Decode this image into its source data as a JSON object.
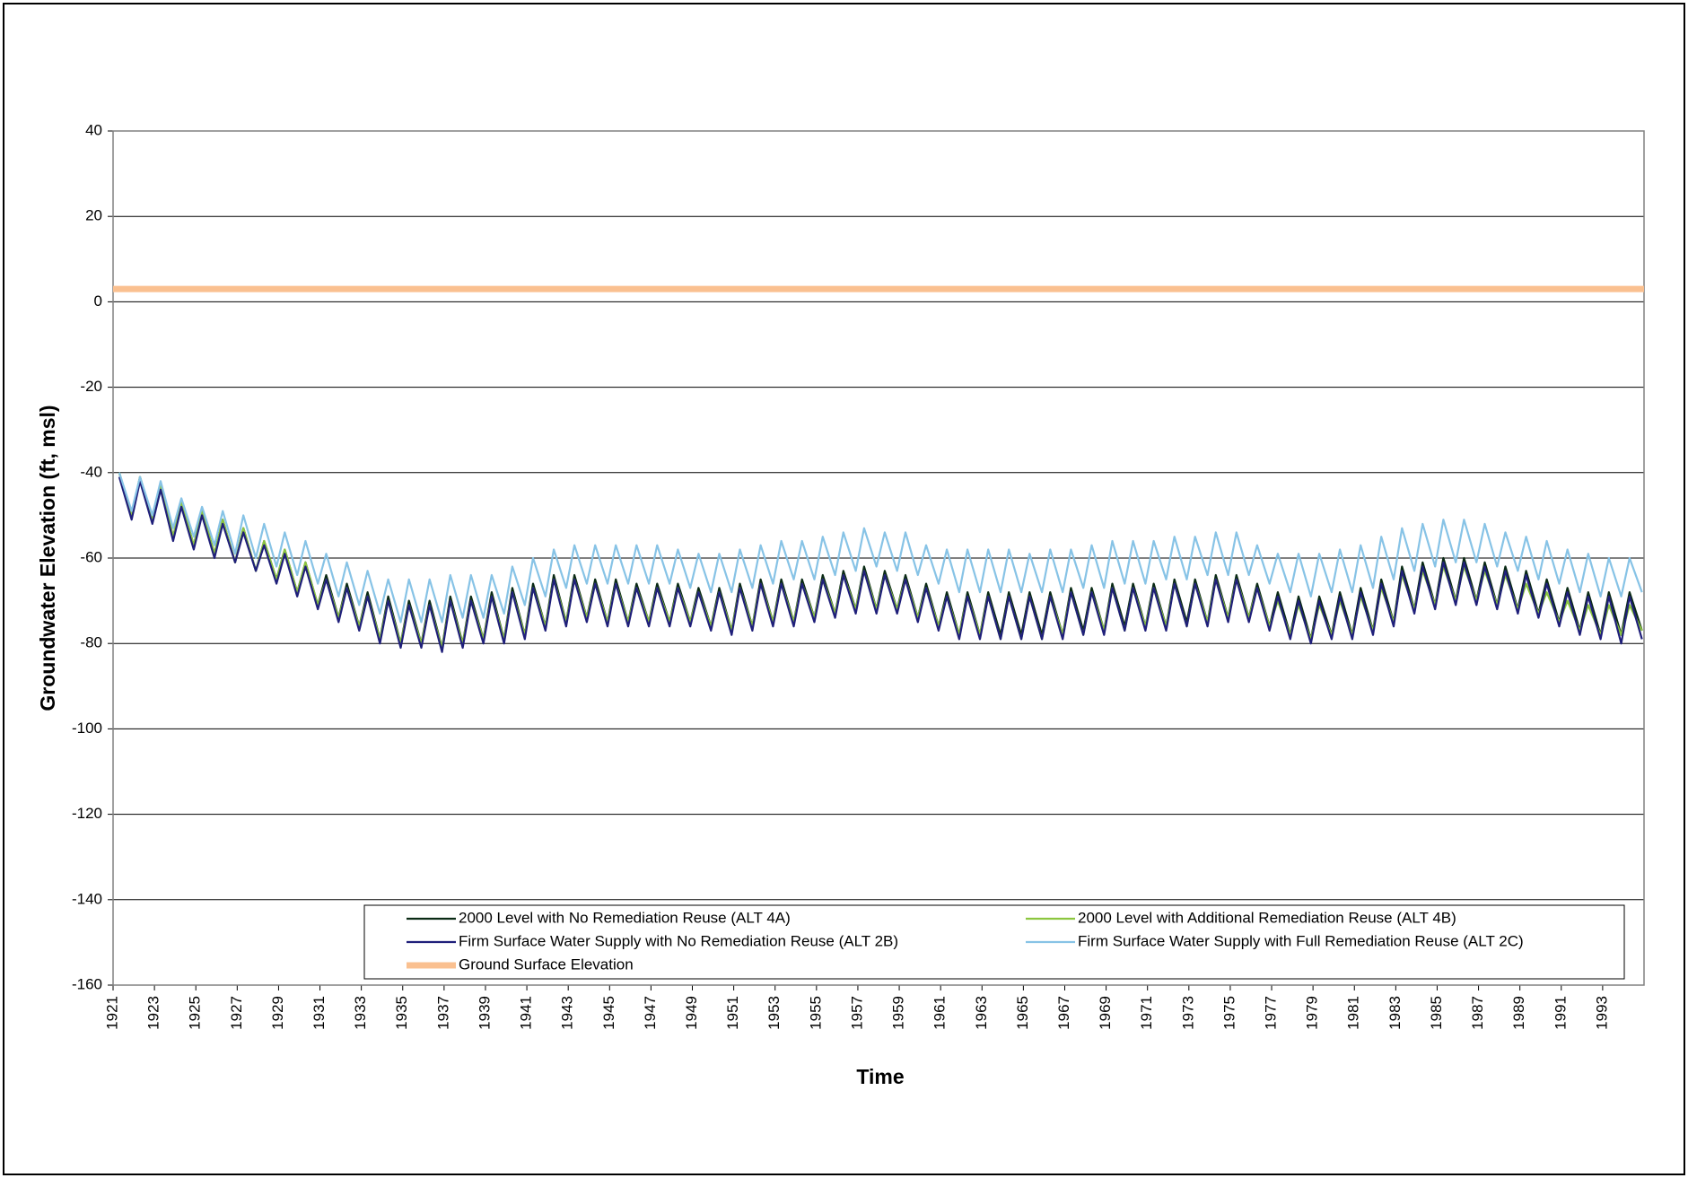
{
  "chart_data": {
    "type": "line",
    "x_label": "Time",
    "y_label": "Groundwater Elevation (ft, msl)",
    "xlim": [
      1921,
      1995
    ],
    "xticks": [
      1921,
      1923,
      1925,
      1927,
      1929,
      1931,
      1933,
      1935,
      1937,
      1939,
      1941,
      1943,
      1945,
      1947,
      1949,
      1951,
      1953,
      1955,
      1957,
      1959,
      1961,
      1963,
      1965,
      1967,
      1969,
      1971,
      1973,
      1975,
      1977,
      1979,
      1981,
      1983,
      1985,
      1987,
      1989,
      1991,
      1993
    ],
    "ylim": [
      -160,
      40
    ],
    "yticks": [
      -160,
      -140,
      -120,
      -100,
      -80,
      -60,
      -40,
      -20,
      0,
      20,
      40
    ],
    "grid": true,
    "legend": "lower center",
    "x": [
      1921.3,
      1921.9,
      1922.3,
      1922.9,
      1923.3,
      1923.9,
      1924.3,
      1924.9,
      1925.3,
      1925.9,
      1926.3,
      1926.9,
      1927.3,
      1927.9,
      1928.3,
      1928.9,
      1929.3,
      1929.9,
      1930.3,
      1930.9,
      1931.3,
      1931.9,
      1932.3,
      1932.9,
      1933.3,
      1933.9,
      1934.3,
      1934.9,
      1935.3,
      1935.9,
      1936.3,
      1936.9,
      1937.3,
      1937.9,
      1938.3,
      1938.9,
      1939.3,
      1939.9,
      1940.3,
      1940.9,
      1941.3,
      1941.9,
      1942.3,
      1942.9,
      1943.3,
      1943.9,
      1944.3,
      1944.9,
      1945.3,
      1945.9,
      1946.3,
      1946.9,
      1947.3,
      1947.9,
      1948.3,
      1948.9,
      1949.3,
      1949.9,
      1950.3,
      1950.9,
      1951.3,
      1951.9,
      1952.3,
      1952.9,
      1953.3,
      1953.9,
      1954.3,
      1954.9,
      1955.3,
      1955.9,
      1956.3,
      1956.9,
      1957.3,
      1957.9,
      1958.3,
      1958.9,
      1959.3,
      1959.9,
      1960.3,
      1960.9,
      1961.3,
      1961.9,
      1962.3,
      1962.9,
      1963.3,
      1963.9,
      1964.3,
      1964.9,
      1965.3,
      1965.9,
      1966.3,
      1966.9,
      1967.3,
      1967.9,
      1968.3,
      1968.9,
      1969.3,
      1969.9,
      1970.3,
      1970.9,
      1971.3,
      1971.9,
      1972.3,
      1972.9,
      1973.3,
      1973.9,
      1974.3,
      1974.9,
      1975.3,
      1975.9,
      1976.3,
      1976.9,
      1977.3,
      1977.9,
      1978.3,
      1978.9,
      1979.3,
      1979.9,
      1980.3,
      1980.9,
      1981.3,
      1981.9,
      1982.3,
      1982.9,
      1983.3,
      1983.9,
      1984.3,
      1984.9,
      1985.3,
      1985.9,
      1986.3,
      1986.9,
      1987.3,
      1987.9,
      1988.3,
      1988.9,
      1989.3,
      1989.9,
      1990.3,
      1990.9,
      1991.3,
      1991.9,
      1992.3,
      1992.9,
      1993.3,
      1993.9,
      1994.3,
      1994.9
    ],
    "series": [
      {
        "name": "2000 Level with No Remediation Reuse (ALT 4A)",
        "color": "#0a2a14",
        "values": [
          -40,
          -50,
          -41,
          -51,
          -43,
          -55,
          -47,
          -57,
          -49,
          -59,
          -51,
          -61,
          -53,
          -63,
          -56,
          -65,
          -58,
          -68,
          -61,
          -71,
          -64,
          -74,
          -66,
          -76,
          -68,
          -79,
          -69,
          -80,
          -70,
          -80,
          -70,
          -81,
          -69,
          -80,
          -69,
          -79,
          -68,
          -79,
          -67,
          -78,
          -66,
          -76,
          -64,
          -75,
          -64,
          -74,
          -65,
          -75,
          -65,
          -75,
          -66,
          -75,
          -66,
          -75,
          -66,
          -75,
          -67,
          -76,
          -67,
          -77,
          -66,
          -76,
          -65,
          -75,
          -65,
          -75,
          -65,
          -74,
          -64,
          -73,
          -63,
          -72,
          -62,
          -72,
          -63,
          -72,
          -64,
          -74,
          -66,
          -76,
          -68,
          -78,
          -68,
          -78,
          -68,
          -78,
          -68,
          -78,
          -68,
          -78,
          -68,
          -78,
          -67,
          -77,
          -67,
          -77,
          -66,
          -76,
          -66,
          -76,
          -66,
          -76,
          -65,
          -75,
          -65,
          -75,
          -64,
          -74,
          -64,
          -74,
          -66,
          -76,
          -68,
          -78,
          -69,
          -79,
          -69,
          -78,
          -68,
          -78,
          -67,
          -77,
          -65,
          -75,
          -62,
          -72,
          -61,
          -71,
          -60,
          -70,
          -60,
          -70,
          -61,
          -71,
          -62,
          -72,
          -63,
          -73,
          -65,
          -75,
          -67,
          -77,
          -68,
          -78,
          -68,
          -78,
          -68,
          -77
        ]
      },
      {
        "name": "2000 Level with Additional Remediation Reuse  (ALT 4B)",
        "color": "#8cc63f",
        "values": [
          -40,
          -50,
          -41,
          -51,
          -43,
          -55,
          -47,
          -57,
          -49,
          -59,
          -51,
          -61,
          -53,
          -63,
          -56,
          -65,
          -58,
          -68,
          -61,
          -71,
          -65,
          -74,
          -67,
          -76,
          -69,
          -79,
          -70,
          -80,
          -71,
          -80,
          -71,
          -81,
          -70,
          -80,
          -70,
          -79,
          -69,
          -79,
          -68,
          -78,
          -67,
          -76,
          -65,
          -75,
          -65,
          -74,
          -66,
          -75,
          -66,
          -75,
          -67,
          -75,
          -67,
          -75,
          -67,
          -75,
          -68,
          -76,
          -68,
          -77,
          -67,
          -76,
          -66,
          -75,
          -66,
          -75,
          -66,
          -74,
          -65,
          -73,
          -64,
          -72,
          -63,
          -72,
          -64,
          -72,
          -65,
          -74,
          -67,
          -76,
          -69,
          -78,
          -69,
          -78,
          -69,
          -79,
          -69,
          -79,
          -69,
          -79,
          -69,
          -78,
          -68,
          -78,
          -68,
          -77,
          -67,
          -77,
          -67,
          -76,
          -67,
          -76,
          -66,
          -76,
          -66,
          -75,
          -65,
          -74,
          -65,
          -74,
          -67,
          -76,
          -70,
          -78,
          -71,
          -79,
          -71,
          -78,
          -70,
          -78,
          -69,
          -77,
          -67,
          -75,
          -64,
          -72,
          -63,
          -71,
          -62,
          -70,
          -62,
          -70,
          -63,
          -71,
          -64,
          -72,
          -66,
          -73,
          -68,
          -75,
          -70,
          -77,
          -71,
          -78,
          -71,
          -78,
          -71,
          -77
        ]
      },
      {
        "name": "Firm Surface Water Supply with No Remediation Reuse (ALT 2B)",
        "color": "#1f1f7a",
        "values": [
          -41,
          -51,
          -42,
          -52,
          -44,
          -56,
          -48,
          -58,
          -50,
          -60,
          -52,
          -61,
          -54,
          -63,
          -57,
          -66,
          -59,
          -69,
          -62,
          -72,
          -65,
          -75,
          -67,
          -77,
          -69,
          -80,
          -70,
          -81,
          -71,
          -81,
          -71,
          -82,
          -70,
          -81,
          -70,
          -80,
          -69,
          -80,
          -68,
          -79,
          -67,
          -77,
          -65,
          -76,
          -65,
          -75,
          -66,
          -76,
          -66,
          -76,
          -67,
          -76,
          -67,
          -76,
          -67,
          -76,
          -68,
          -77,
          -68,
          -78,
          -67,
          -77,
          -66,
          -76,
          -66,
          -76,
          -66,
          -75,
          -65,
          -74,
          -64,
          -73,
          -63,
          -73,
          -64,
          -73,
          -65,
          -75,
          -67,
          -77,
          -69,
          -79,
          -69,
          -79,
          -69,
          -79,
          -69,
          -79,
          -69,
          -79,
          -69,
          -79,
          -68,
          -78,
          -68,
          -78,
          -67,
          -77,
          -67,
          -77,
          -67,
          -77,
          -66,
          -76,
          -66,
          -76,
          -65,
          -75,
          -65,
          -75,
          -67,
          -77,
          -69,
          -79,
          -70,
          -80,
          -70,
          -79,
          -69,
          -79,
          -68,
          -78,
          -66,
          -76,
          -63,
          -73,
          -62,
          -72,
          -61,
          -71,
          -61,
          -71,
          -62,
          -72,
          -63,
          -73,
          -64,
          -74,
          -66,
          -76,
          -68,
          -78,
          -69,
          -79,
          -69,
          -80,
          -69,
          -79
        ]
      },
      {
        "name": "Firm Surface Water Supply with Full Remediation Reuse (ALT 2C)",
        "color": "#87c3e6",
        "values": [
          -40,
          -49,
          -41,
          -50,
          -42,
          -53,
          -46,
          -55,
          -48,
          -57,
          -49,
          -59,
          -50,
          -60,
          -52,
          -62,
          -54,
          -64,
          -56,
          -66,
          -59,
          -69,
          -61,
          -71,
          -63,
          -73,
          -65,
          -75,
          -65,
          -75,
          -65,
          -75,
          -64,
          -74,
          -64,
          -74,
          -64,
          -73,
          -62,
          -71,
          -60,
          -69,
          -58,
          -67,
          -57,
          -66,
          -57,
          -66,
          -57,
          -66,
          -57,
          -66,
          -57,
          -66,
          -58,
          -67,
          -59,
          -68,
          -59,
          -68,
          -58,
          -67,
          -57,
          -66,
          -56,
          -65,
          -56,
          -65,
          -55,
          -64,
          -54,
          -63,
          -53,
          -62,
          -54,
          -63,
          -54,
          -64,
          -57,
          -66,
          -58,
          -68,
          -58,
          -68,
          -58,
          -68,
          -58,
          -68,
          -59,
          -68,
          -58,
          -68,
          -58,
          -67,
          -57,
          -67,
          -56,
          -66,
          -56,
          -66,
          -56,
          -65,
          -55,
          -65,
          -55,
          -64,
          -54,
          -64,
          -54,
          -64,
          -57,
          -66,
          -59,
          -68,
          -59,
          -69,
          -59,
          -68,
          -58,
          -68,
          -57,
          -67,
          -55,
          -65,
          -53,
          -63,
          -52,
          -62,
          -51,
          -61,
          -51,
          -61,
          -52,
          -62,
          -54,
          -63,
          -55,
          -65,
          -56,
          -66,
          -58,
          -68,
          -59,
          -69,
          -60,
          -69,
          -60,
          -68
        ]
      },
      {
        "name": "Ground Surface Elevation",
        "color": "#fac090",
        "x": [
          1921,
          1995
        ],
        "values": [
          3,
          3
        ]
      }
    ]
  }
}
